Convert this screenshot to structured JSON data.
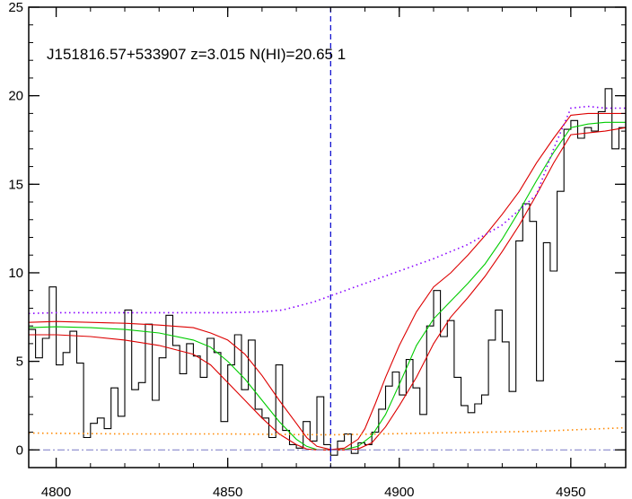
{
  "chart_data": {
    "type": "line",
    "title": "J151816.57+533907 z=3.015 N(HI)=20.65 1",
    "xlabel": "",
    "ylabel": "",
    "xlim": [
      4792,
      4966
    ],
    "ylim": [
      -1,
      25
    ],
    "xticks": [
      4800,
      4850,
      4900,
      4950
    ],
    "yticks": [
      0,
      5,
      10,
      15,
      20,
      25
    ],
    "grid": false,
    "legend": "none",
    "vline_x": 4880,
    "colors": {
      "flux": "#000000",
      "fit": "#00cc00",
      "fit_bounds": "#dd0000",
      "continuum": "#8800ff",
      "error": "#ff8800",
      "zero": "#8888cc",
      "vline": "#0000cc"
    },
    "series": [
      {
        "style": "steps",
        "color": "#000000",
        "x": [
          4792,
          4794,
          4796,
          4798,
          4800,
          4802,
          4804,
          4806,
          4808,
          4810,
          4812,
          4814,
          4816,
          4818,
          4820,
          4822,
          4824,
          4826,
          4828,
          4830,
          4832,
          4834,
          4836,
          4838,
          4840,
          4842,
          4844,
          4846,
          4848,
          4850,
          4852,
          4854,
          4856,
          4858,
          4860,
          4862,
          4864,
          4866,
          4868,
          4870,
          4872,
          4874,
          4876,
          4878,
          4880,
          4882,
          4884,
          4886,
          4888,
          4890,
          4892,
          4894,
          4896,
          4898,
          4900,
          4902,
          4904,
          4906,
          4908,
          4910,
          4912,
          4914,
          4916,
          4918,
          4920,
          4922,
          4924,
          4926,
          4928,
          4930,
          4932,
          4934,
          4936,
          4938,
          4940,
          4942,
          4944,
          4946,
          4948,
          4950,
          4952,
          4954,
          4956,
          4958,
          4960,
          4962,
          4964
        ],
        "y": [
          6.8,
          5.2,
          6.3,
          9.2,
          4.8,
          5.5,
          6.7,
          4.9,
          0.7,
          1.5,
          1.8,
          1.2,
          3.5,
          1.9,
          7.9,
          3.4,
          3.8,
          7.1,
          2.8,
          5.2,
          7.6,
          5.9,
          4.3,
          6.0,
          5.3,
          4.1,
          6.3,
          5.5,
          1.6,
          4.8,
          6.5,
          3.4,
          6.2,
          2.3,
          1.8,
          0.7,
          4.8,
          1.1,
          0.3,
          0.1,
          1.6,
          0.5,
          3.0,
          0.3,
          -0.3,
          0.5,
          0.9,
          -0.2,
          0.4,
          0.3,
          1.0,
          2.3,
          3.6,
          4.4,
          3.1,
          5.1,
          3.5,
          2.0,
          7.0,
          9.0,
          6.4,
          7.3,
          4.1,
          2.5,
          2.1,
          2.6,
          3.1,
          6.2,
          7.9,
          6.1,
          3.3,
          11.8,
          13.9,
          12.9,
          3.9,
          11.7,
          10.1,
          14.6,
          18.1,
          18.6,
          17.6,
          18.2,
          18.0,
          19.1,
          20.4,
          17.0,
          18.2
        ]
      },
      {
        "style": "line",
        "color": "#00cc00",
        "x": [
          4792,
          4800,
          4810,
          4820,
          4830,
          4840,
          4845,
          4850,
          4855,
          4860,
          4865,
          4870,
          4873,
          4876,
          4880,
          4884,
          4888,
          4892,
          4896,
          4900,
          4905,
          4910,
          4915,
          4920,
          4925,
          4930,
          4935,
          4940,
          4945,
          4950,
          4955,
          4960,
          4966
        ],
        "y": [
          6.9,
          6.95,
          6.9,
          6.8,
          6.6,
          6.2,
          5.8,
          5.0,
          4.0,
          2.8,
          1.6,
          0.6,
          0.2,
          0.02,
          0.0,
          0.02,
          0.2,
          0.8,
          2.0,
          3.7,
          5.9,
          7.4,
          8.4,
          9.4,
          10.5,
          11.9,
          13.5,
          15.2,
          16.8,
          18.2,
          18.4,
          18.5,
          18.5
        ]
      },
      {
        "style": "line",
        "color": "#dd0000",
        "x": [
          4792,
          4800,
          4810,
          4820,
          4830,
          4840,
          4845,
          4850,
          4855,
          4860,
          4865,
          4870,
          4873,
          4876,
          4880,
          4884,
          4888,
          4890,
          4893,
          4896,
          4900,
          4905,
          4910,
          4915,
          4920,
          4925,
          4930,
          4935,
          4940,
          4945,
          4950,
          4955,
          4960,
          4966
        ],
        "y": [
          7.2,
          7.25,
          7.2,
          7.15,
          7.05,
          6.9,
          6.6,
          6.2,
          5.4,
          4.2,
          2.8,
          1.5,
          0.7,
          0.2,
          0.02,
          0.1,
          0.6,
          1.2,
          2.6,
          4.1,
          5.9,
          7.8,
          9.2,
          10.0,
          11.0,
          12.1,
          13.3,
          14.6,
          16.2,
          17.6,
          18.9,
          19.0,
          19.0,
          19.0
        ]
      },
      {
        "style": "line",
        "color": "#dd0000",
        "x": [
          4792,
          4800,
          4810,
          4820,
          4830,
          4840,
          4845,
          4850,
          4855,
          4860,
          4865,
          4870,
          4873,
          4876,
          4880,
          4884,
          4888,
          4892,
          4896,
          4900,
          4905,
          4910,
          4915,
          4920,
          4925,
          4930,
          4935,
          4940,
          4945,
          4950,
          4955,
          4960,
          4966
        ],
        "y": [
          6.5,
          6.5,
          6.4,
          6.2,
          5.9,
          5.4,
          4.8,
          3.8,
          2.8,
          1.8,
          0.9,
          0.3,
          0.05,
          0.0,
          0.0,
          0.0,
          0.05,
          0.4,
          1.3,
          2.5,
          4.1,
          6.0,
          7.5,
          8.6,
          9.8,
          11.2,
          12.7,
          14.4,
          16.2,
          17.8,
          17.9,
          18.0,
          18.2
        ]
      },
      {
        "style": "dotted",
        "color": "#8800ff",
        "x": [
          4792,
          4800,
          4810,
          4820,
          4830,
          4840,
          4850,
          4860,
          4866,
          4870,
          4875,
          4880,
          4890,
          4900,
          4910,
          4920,
          4930,
          4940,
          4945,
          4950,
          4955,
          4960,
          4966
        ],
        "y": [
          7.7,
          7.75,
          7.75,
          7.75,
          7.75,
          7.75,
          7.75,
          7.8,
          7.9,
          8.1,
          8.35,
          8.7,
          9.4,
          10.1,
          10.8,
          11.6,
          12.7,
          14.4,
          17.0,
          19.3,
          19.4,
          19.3,
          19.3
        ]
      },
      {
        "style": "dotted",
        "color": "#ff8800",
        "x": [
          4792,
          4820,
          4850,
          4880,
          4910,
          4940,
          4966
        ],
        "y": [
          0.95,
          0.9,
          0.9,
          0.85,
          0.95,
          1.05,
          1.25
        ]
      },
      {
        "style": "dashdot",
        "color": "#8888cc",
        "x": [
          4792,
          4966
        ],
        "y": [
          0.0,
          0.0
        ]
      }
    ]
  }
}
